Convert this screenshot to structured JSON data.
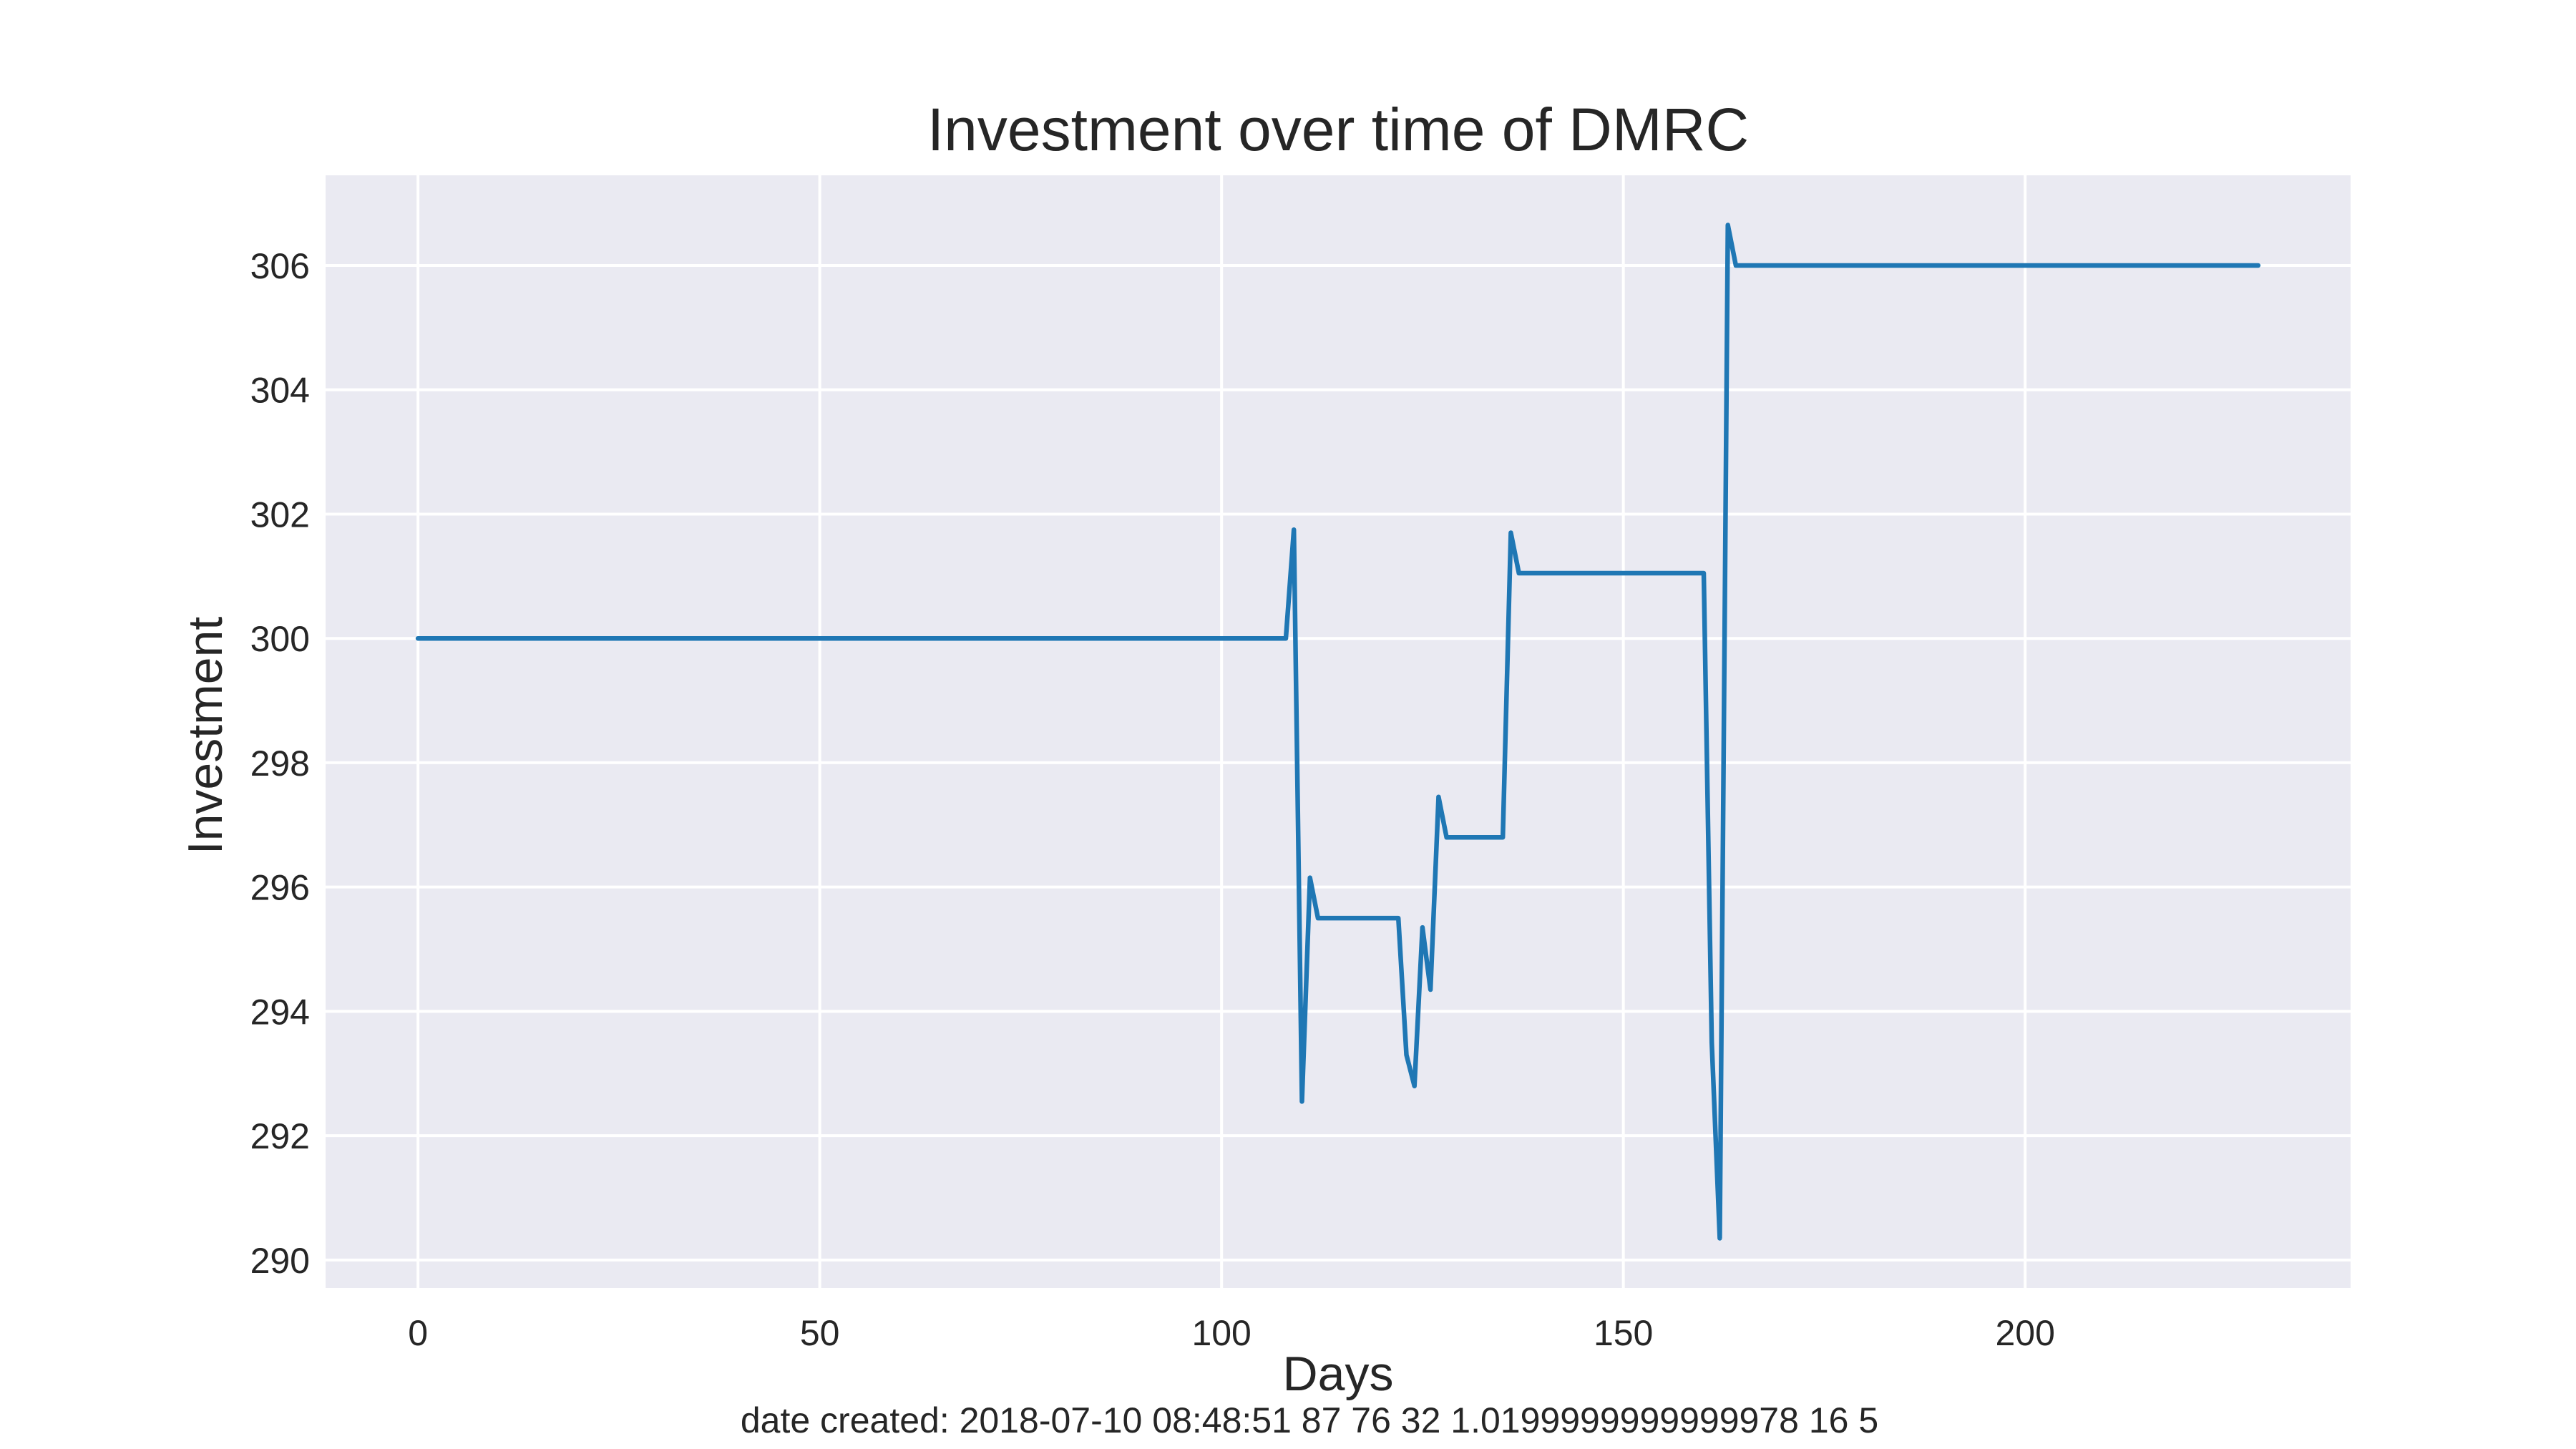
{
  "chart_data": {
    "type": "line",
    "title": "Investment over time of DMRC",
    "xlabel": "Days",
    "ylabel": "Investment",
    "xlim": [
      -11.5,
      240.5
    ],
    "ylim": [
      289.55,
      307.45
    ],
    "xticks": [
      0,
      50,
      100,
      150,
      200
    ],
    "yticks": [
      290,
      292,
      294,
      296,
      298,
      300,
      302,
      304,
      306
    ],
    "grid": true,
    "series_color": "#1f77b4",
    "plot_background": "#eaeaf2",
    "series": [
      {
        "points": [
          [
            0,
            300.0
          ],
          [
            108,
            300.0
          ],
          [
            109,
            301.75
          ],
          [
            110,
            292.55
          ],
          [
            111,
            296.15
          ],
          [
            112,
            295.5
          ],
          [
            122,
            295.5
          ],
          [
            123,
            293.3
          ],
          [
            124,
            292.8
          ],
          [
            125,
            295.35
          ],
          [
            126,
            294.35
          ],
          [
            127,
            297.45
          ],
          [
            128,
            296.8
          ],
          [
            135,
            296.8
          ],
          [
            136,
            301.7
          ],
          [
            137,
            301.05
          ],
          [
            160,
            301.05
          ],
          [
            161,
            293.5
          ],
          [
            162,
            290.35
          ],
          [
            163,
            306.65
          ],
          [
            164,
            306.0
          ],
          [
            229,
            306.0
          ]
        ]
      }
    ],
    "caption": "date created: 2018-07-10 08:48:51 87 76 32 1.0199999999999978 16 5"
  }
}
